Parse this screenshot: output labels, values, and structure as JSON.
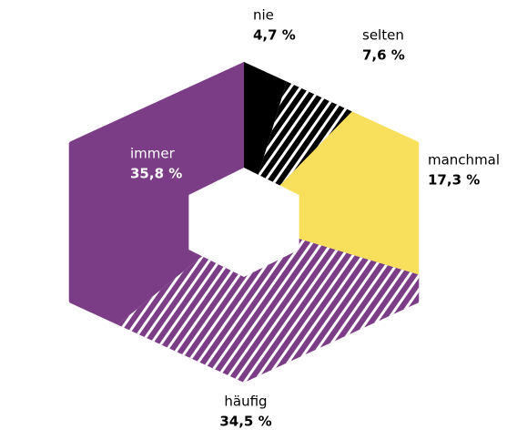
{
  "chart_data": {
    "type": "hexdonut",
    "categories": [
      "nie",
      "selten",
      "manchmal",
      "häufig",
      "immer"
    ],
    "values": [
      4.7,
      7.6,
      17.3,
      34.5,
      35.8
    ],
    "value_labels": [
      "4,7 %",
      "7,6 %",
      "17,3 %",
      "34,5 %",
      "35,8 %"
    ],
    "colors": [
      "#000000",
      "#000000",
      "#f8e05c",
      "#7b3d85",
      "#7b3d85"
    ],
    "hatched": [
      false,
      true,
      false,
      true,
      false
    ]
  }
}
